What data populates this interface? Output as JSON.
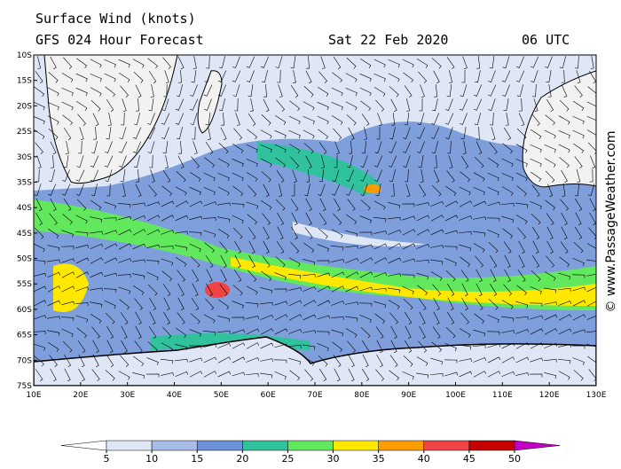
{
  "header": {
    "title": "Surface Wind (knots)",
    "model": "GFS 024 Hour Forecast",
    "date": "Sat 22 Feb 2020",
    "time": "06 UTC"
  },
  "map": {
    "lat_labels": [
      "10S",
      "15S",
      "20S",
      "25S",
      "30S",
      "35S",
      "40S",
      "45S",
      "50S",
      "55S",
      "60S",
      "65S",
      "70S",
      "75S"
    ],
    "lon_labels": [
      "10E",
      "20E",
      "30E",
      "40E",
      "50E",
      "60E",
      "70E",
      "80E",
      "90E",
      "100E",
      "110E",
      "120E",
      "130E"
    ]
  },
  "colorbar": {
    "ticks": [
      5,
      10,
      15,
      20,
      25,
      30,
      35,
      40,
      45,
      50
    ],
    "colors": [
      "#ffffff",
      "#dfe7f6",
      "#a8bde8",
      "#6d91d9",
      "#2fc29c",
      "#62e85c",
      "#ffe800",
      "#ff9c00",
      "#f04444",
      "#c40000",
      "#c400c4"
    ]
  },
  "credit": "© www.PassageWeather.com"
}
